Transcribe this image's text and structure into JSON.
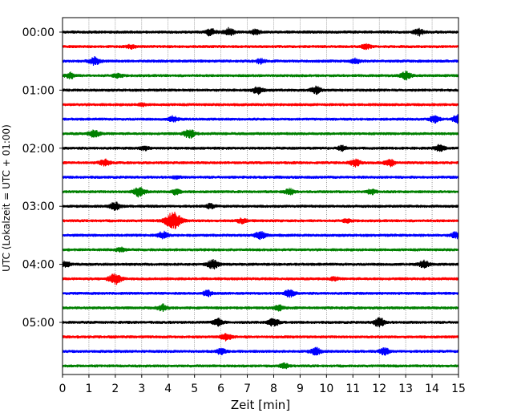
{
  "chart_data": {
    "type": "line",
    "xlabel": "Zeit  [min]",
    "ylabel": "UTC (Lokalzeit = UTC + 01:00)",
    "xlim": [
      0,
      15
    ],
    "x_ticks": [
      0,
      1,
      2,
      3,
      4,
      5,
      6,
      7,
      8,
      9,
      10,
      11,
      12,
      13,
      14,
      15
    ],
    "row_count": 24,
    "minutes_per_row": 15,
    "y_ticks": [
      {
        "row": 0,
        "label": "00:00"
      },
      {
        "row": 4,
        "label": "01:00"
      },
      {
        "row": 8,
        "label": "02:00"
      },
      {
        "row": 12,
        "label": "03:00"
      },
      {
        "row": 16,
        "label": "04:00"
      },
      {
        "row": 20,
        "label": "05:00"
      }
    ],
    "grid": {
      "vertical": true,
      "style": "dotted"
    },
    "trace_colors": [
      "#000000",
      "#ff0000",
      "#0000ff",
      "#008000"
    ],
    "events": [
      {
        "row": 0,
        "x": 5.6,
        "amp": 0.45
      },
      {
        "row": 0,
        "x": 6.3,
        "amp": 0.5
      },
      {
        "row": 0,
        "x": 7.3,
        "amp": 0.3
      },
      {
        "row": 0,
        "x": 13.5,
        "amp": 0.4
      },
      {
        "row": 1,
        "x": 2.6,
        "amp": 0.25
      },
      {
        "row": 1,
        "x": 11.5,
        "amp": 0.3
      },
      {
        "row": 2,
        "x": 1.2,
        "amp": 0.5
      },
      {
        "row": 2,
        "x": 7.5,
        "amp": 0.3
      },
      {
        "row": 2,
        "x": 11.1,
        "amp": 0.3
      },
      {
        "row": 3,
        "x": 0.3,
        "amp": 0.35
      },
      {
        "row": 3,
        "x": 2.1,
        "amp": 0.3
      },
      {
        "row": 3,
        "x": 13.0,
        "amp": 0.5
      },
      {
        "row": 4,
        "x": 7.4,
        "amp": 0.45
      },
      {
        "row": 4,
        "x": 9.6,
        "amp": 0.45
      },
      {
        "row": 5,
        "x": 3.0,
        "amp": 0.15
      },
      {
        "row": 6,
        "x": 4.2,
        "amp": 0.35
      },
      {
        "row": 6,
        "x": 14.1,
        "amp": 0.4
      },
      {
        "row": 6,
        "x": 15.0,
        "amp": 0.55
      },
      {
        "row": 7,
        "x": 1.2,
        "amp": 0.45
      },
      {
        "row": 7,
        "x": 4.8,
        "amp": 0.55
      },
      {
        "row": 8,
        "x": 3.1,
        "amp": 0.25
      },
      {
        "row": 8,
        "x": 10.6,
        "amp": 0.3
      },
      {
        "row": 8,
        "x": 14.3,
        "amp": 0.4
      },
      {
        "row": 9,
        "x": 1.6,
        "amp": 0.4
      },
      {
        "row": 9,
        "x": 11.1,
        "amp": 0.45
      },
      {
        "row": 9,
        "x": 12.4,
        "amp": 0.45
      },
      {
        "row": 10,
        "x": 4.3,
        "amp": 0.15
      },
      {
        "row": 11,
        "x": 2.9,
        "amp": 0.6
      },
      {
        "row": 11,
        "x": 4.3,
        "amp": 0.35
      },
      {
        "row": 11,
        "x": 8.6,
        "amp": 0.35
      },
      {
        "row": 11,
        "x": 11.7,
        "amp": 0.3
      },
      {
        "row": 12,
        "x": 2.0,
        "amp": 0.5
      },
      {
        "row": 12,
        "x": 5.6,
        "amp": 0.3
      },
      {
        "row": 13,
        "x": 4.2,
        "amp": 1.1
      },
      {
        "row": 13,
        "x": 6.8,
        "amp": 0.3
      },
      {
        "row": 13,
        "x": 10.8,
        "amp": 0.25
      },
      {
        "row": 14,
        "x": 3.8,
        "amp": 0.45
      },
      {
        "row": 14,
        "x": 7.5,
        "amp": 0.5
      },
      {
        "row": 14,
        "x": 14.9,
        "amp": 0.4
      },
      {
        "row": 15,
        "x": 2.2,
        "amp": 0.25
      },
      {
        "row": 16,
        "x": 0.1,
        "amp": 0.35
      },
      {
        "row": 16,
        "x": 5.7,
        "amp": 0.55
      },
      {
        "row": 16,
        "x": 13.7,
        "amp": 0.45
      },
      {
        "row": 17,
        "x": 2.0,
        "amp": 0.7
      },
      {
        "row": 17,
        "x": 10.3,
        "amp": 0.2
      },
      {
        "row": 18,
        "x": 5.5,
        "amp": 0.35
      },
      {
        "row": 18,
        "x": 8.6,
        "amp": 0.45
      },
      {
        "row": 19,
        "x": 3.8,
        "amp": 0.4
      },
      {
        "row": 19,
        "x": 8.2,
        "amp": 0.35
      },
      {
        "row": 20,
        "x": 5.9,
        "amp": 0.45
      },
      {
        "row": 20,
        "x": 8.0,
        "amp": 0.5
      },
      {
        "row": 20,
        "x": 12.0,
        "amp": 0.55
      },
      {
        "row": 21,
        "x": 6.2,
        "amp": 0.45
      },
      {
        "row": 22,
        "x": 6.0,
        "amp": 0.35
      },
      {
        "row": 22,
        "x": 9.6,
        "amp": 0.45
      },
      {
        "row": 22,
        "x": 12.2,
        "amp": 0.4
      },
      {
        "row": 23,
        "x": 8.4,
        "amp": 0.3
      }
    ]
  }
}
